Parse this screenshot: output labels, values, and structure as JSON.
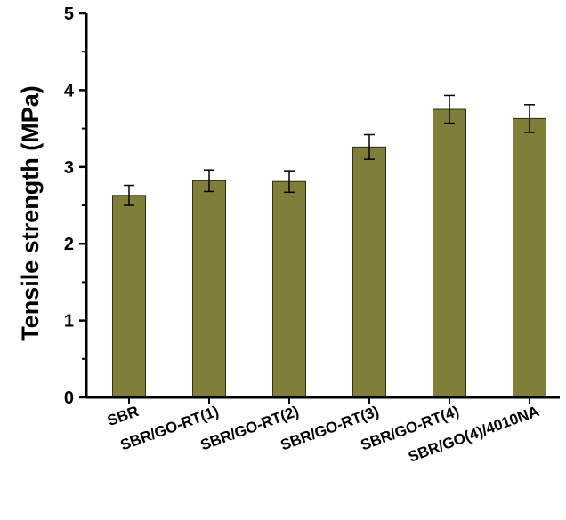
{
  "chart_data": {
    "type": "bar",
    "title": "",
    "xlabel": "",
    "ylabel": "Tensile strength (MPa)",
    "ylim": [
      0,
      5
    ],
    "yticks": [
      0,
      1,
      2,
      3,
      4,
      5
    ],
    "grid": false,
    "categories": [
      "SBR",
      "SBR/GO-RT(1)",
      "SBR/GO-RT(2)",
      "SBR/GO-RT(3)",
      "SBR/GO-RT(4)",
      "SBR/GO(4)/4010NA"
    ],
    "values": [
      2.63,
      2.82,
      2.81,
      3.26,
      3.75,
      3.63
    ],
    "errors": [
      0.13,
      0.14,
      0.14,
      0.16,
      0.18,
      0.18
    ],
    "colors": {
      "bar_fill": "#7f7f3a",
      "bar_stroke": "#2e2e14",
      "axis": "#000000"
    }
  }
}
